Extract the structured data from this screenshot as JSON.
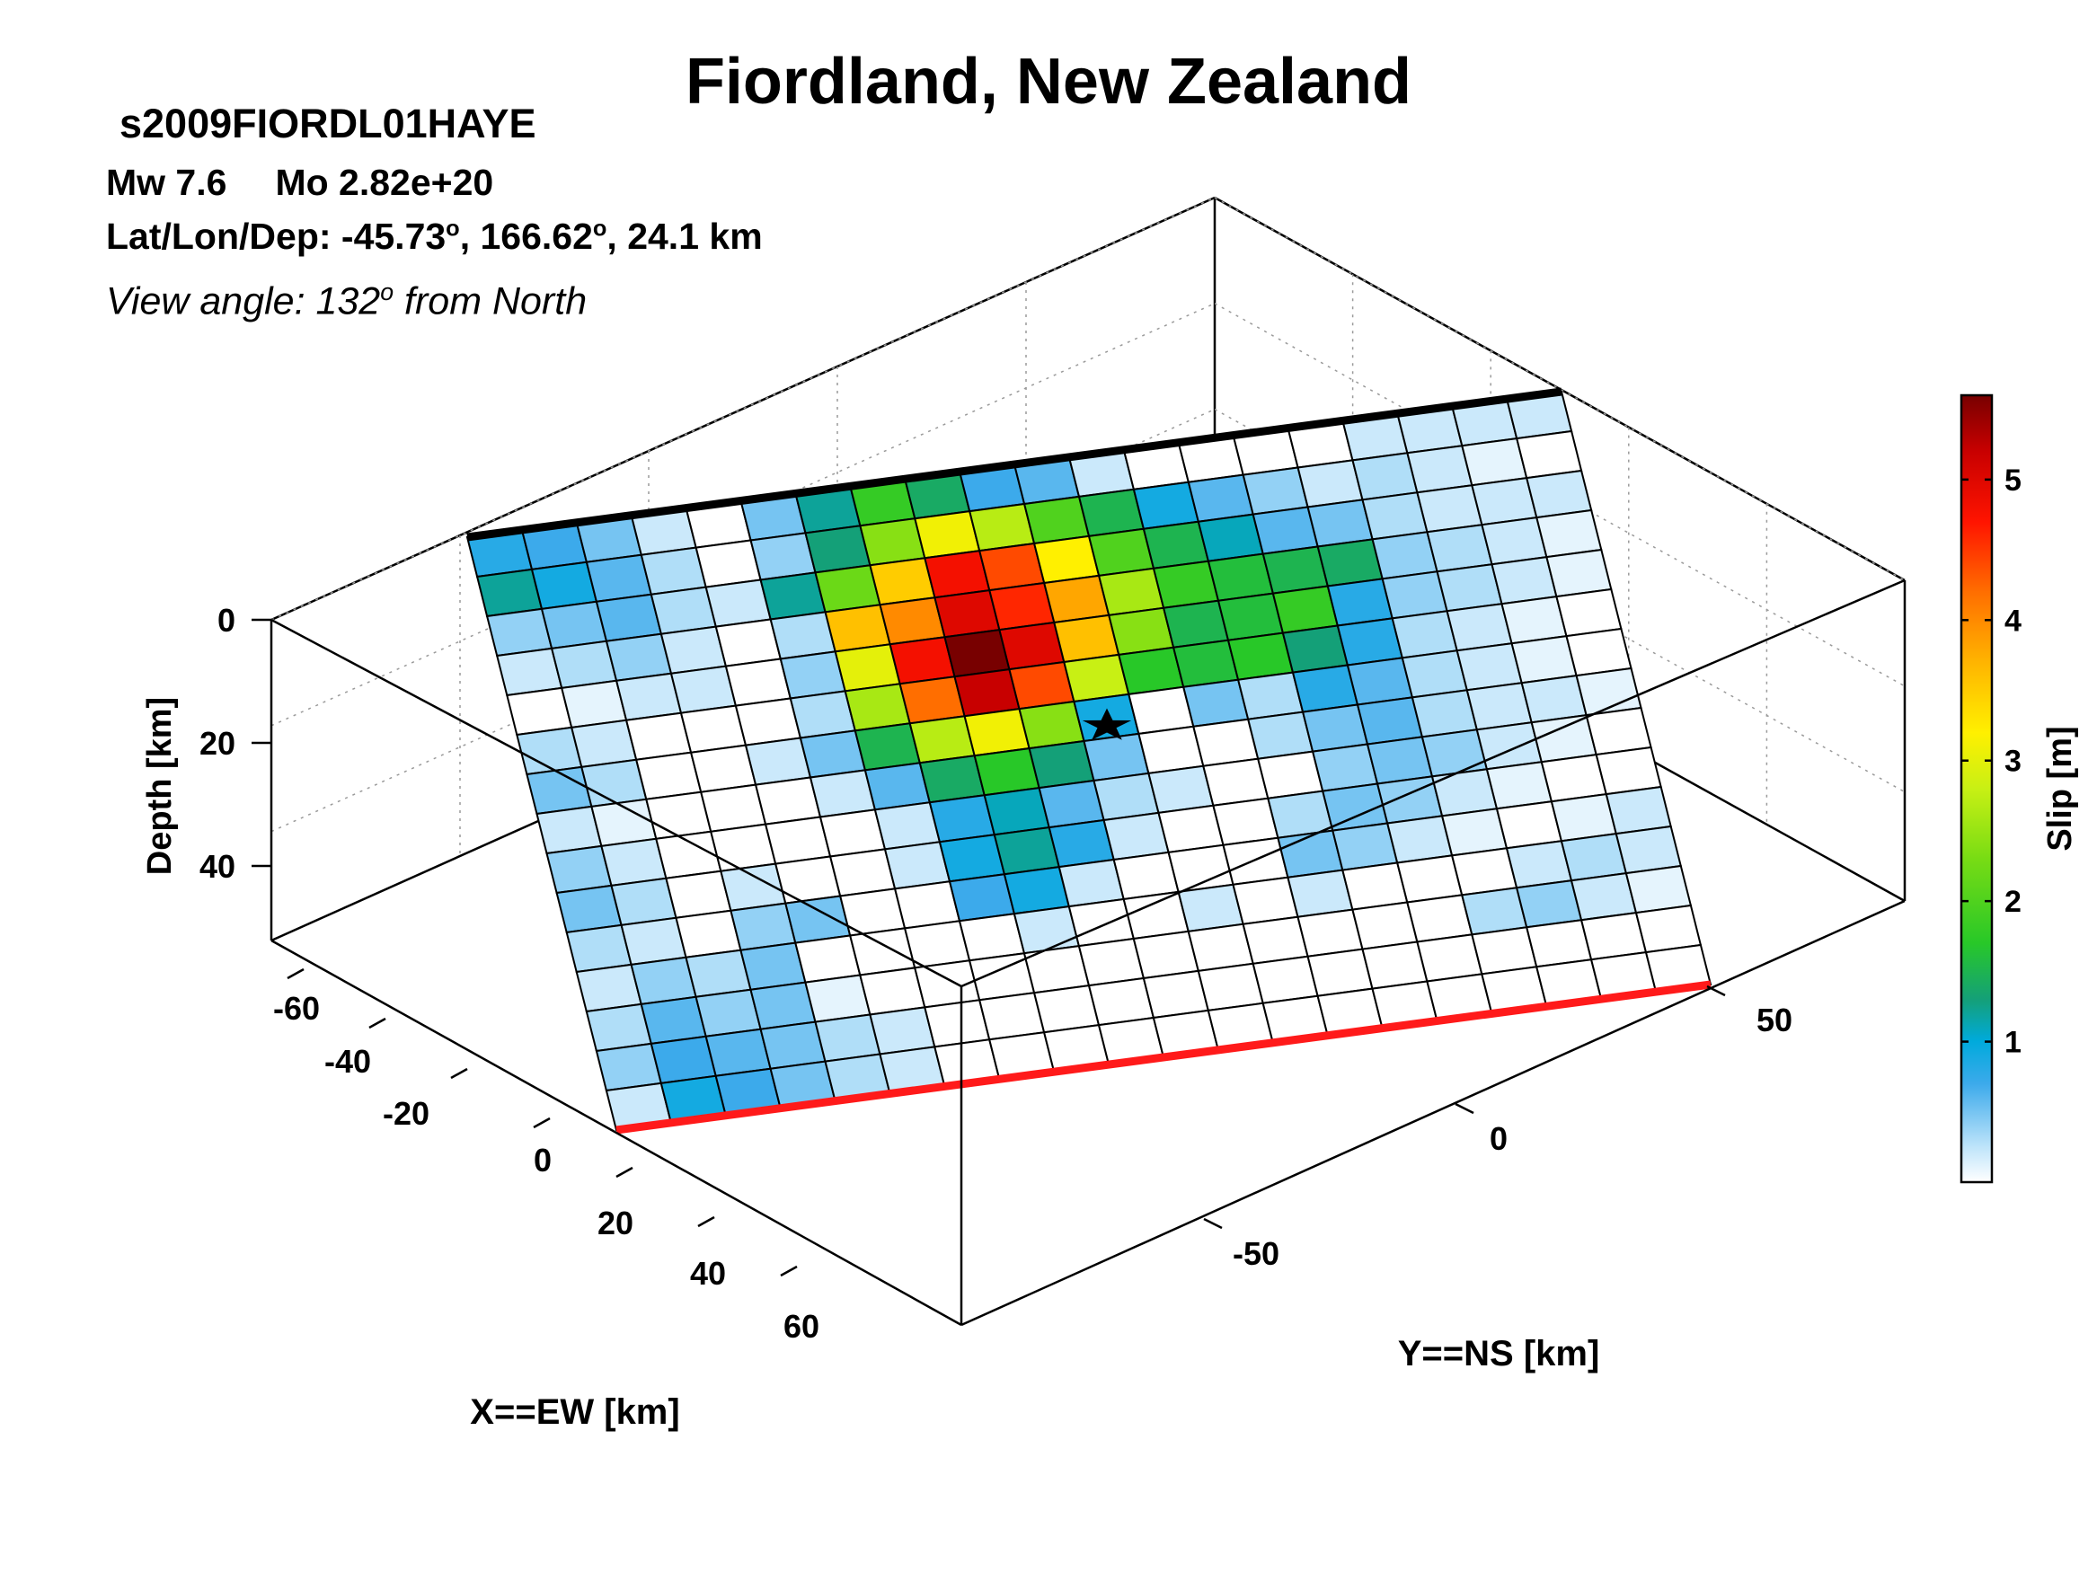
{
  "header": {
    "title": "Fiordland, New Zealand",
    "event_id": "s2009FIORDL01HAYE",
    "mw": "Mw 7.6",
    "mo": "Mo 2.82e+20",
    "latlon_prefix": "Lat/Lon/Dep: -45.73",
    "lon_text": ", 166.62",
    "dep_text": ", 24.1 km",
    "degree_mark": "o",
    "view_prefix": "View angle: 132",
    "view_suffix": " from North"
  },
  "chart_data": {
    "type": "heatmap",
    "title": "Fiordland, New Zealand",
    "xlabel": "X==EW [km]",
    "ylabel": "Y==NS [km]",
    "zlabel": "Depth [km]",
    "colorbar_label": "Slip [m]",
    "x_ticks": [
      "-60",
      "-40",
      "-20",
      "0",
      "20",
      "40",
      "60"
    ],
    "y_ticks": [
      "50",
      "0",
      "-50"
    ],
    "z_ticks": [
      "0",
      "20",
      "40"
    ],
    "colorbar_ticks": [
      "5",
      "4",
      "3",
      "2",
      "1"
    ],
    "slip_range": [
      0,
      5.6
    ],
    "view_angle_deg": 132,
    "grid_cols": 20,
    "grid_rows": 15,
    "colors": {
      "top_edge": "#000000",
      "bottom_edge": "#ff1a1a",
      "hypocenter": "#000000"
    },
    "slip": [
      [
        0.8,
        0.7,
        0.5,
        0.2,
        0.0,
        0.5,
        1.2,
        1.8,
        1.4,
        0.7,
        0.6,
        0.2,
        0.0,
        0.0,
        0.0,
        0.0,
        0.2,
        0.2,
        0.2,
        0.2
      ],
      [
        1.2,
        0.9,
        0.6,
        0.3,
        0.0,
        0.4,
        1.3,
        2.4,
        3.1,
        2.7,
        2.0,
        1.5,
        0.9,
        0.6,
        0.4,
        0.2,
        0.3,
        0.2,
        0.1,
        0.0
      ],
      [
        0.4,
        0.5,
        0.6,
        0.3,
        0.2,
        1.2,
        2.2,
        3.5,
        4.8,
        4.4,
        3.2,
        2.0,
        1.5,
        1.1,
        0.6,
        0.5,
        0.3,
        0.2,
        0.2,
        0.2
      ],
      [
        0.2,
        0.3,
        0.4,
        0.2,
        0.0,
        0.3,
        3.6,
        4.0,
        5.0,
        4.6,
        3.8,
        2.6,
        1.8,
        1.6,
        1.5,
        1.4,
        0.4,
        0.3,
        0.2,
        0.1
      ],
      [
        0.0,
        0.1,
        0.2,
        0.2,
        0.0,
        0.4,
        3.0,
        4.8,
        5.6,
        5.0,
        3.6,
        2.4,
        1.5,
        1.6,
        1.8,
        0.8,
        0.4,
        0.3,
        0.2,
        0.1
      ],
      [
        0.3,
        0.2,
        0.0,
        0.0,
        0.0,
        0.3,
        2.6,
        4.2,
        5.2,
        4.4,
        2.8,
        1.7,
        1.6,
        1.7,
        1.3,
        0.8,
        0.3,
        0.2,
        0.1,
        0.0
      ],
      [
        0.5,
        0.3,
        0.0,
        0.0,
        0.2,
        0.5,
        1.5,
        2.7,
        3.1,
        2.4,
        0.9,
        0.0,
        0.5,
        0.3,
        0.8,
        0.6,
        0.3,
        0.2,
        0.1,
        0.0
      ],
      [
        0.2,
        0.1,
        0.0,
        0.0,
        0.0,
        0.2,
        0.6,
        1.4,
        1.7,
        1.3,
        0.5,
        0.0,
        0.0,
        0.3,
        0.5,
        0.6,
        0.3,
        0.2,
        0.2,
        0.1
      ],
      [
        0.4,
        0.2,
        0.0,
        0.0,
        0.0,
        0.0,
        0.2,
        0.8,
        1.1,
        0.6,
        0.3,
        0.2,
        0.0,
        0.0,
        0.4,
        0.5,
        0.4,
        0.2,
        0.1,
        0.0
      ],
      [
        0.5,
        0.3,
        0.0,
        0.2,
        0.0,
        0.0,
        0.2,
        0.9,
        1.2,
        0.8,
        0.2,
        0.0,
        0.0,
        0.3,
        0.5,
        0.4,
        0.2,
        0.1,
        0.0,
        0.0
      ],
      [
        0.3,
        0.2,
        0.0,
        0.4,
        0.5,
        0.0,
        0.0,
        0.7,
        0.9,
        0.2,
        0.0,
        0.0,
        0.0,
        0.5,
        0.4,
        0.2,
        0.1,
        0.0,
        0.1,
        0.2
      ],
      [
        0.2,
        0.4,
        0.3,
        0.5,
        0.0,
        0.0,
        0.0,
        0.0,
        0.2,
        0.0,
        0.0,
        0.2,
        0.0,
        0.2,
        0.0,
        0.0,
        0.0,
        0.2,
        0.3,
        0.2
      ],
      [
        0.3,
        0.6,
        0.4,
        0.5,
        0.1,
        0.0,
        0.0,
        0.0,
        0.0,
        0.0,
        0.0,
        0.0,
        0.0,
        0.0,
        0.0,
        0.0,
        0.3,
        0.4,
        0.2,
        0.1
      ],
      [
        0.4,
        0.7,
        0.6,
        0.5,
        0.3,
        0.2,
        0.0,
        0.0,
        0.0,
        0.0,
        0.0,
        0.0,
        0.0,
        0.0,
        0.0,
        0.0,
        0.0,
        0.0,
        0.0,
        0.0
      ],
      [
        0.2,
        0.9,
        0.7,
        0.5,
        0.3,
        0.2,
        0.0,
        0.0,
        0.0,
        0.0,
        0.0,
        0.0,
        0.0,
        0.0,
        0.0,
        0.0,
        0.0,
        0.0,
        0.0,
        0.0
      ]
    ]
  }
}
